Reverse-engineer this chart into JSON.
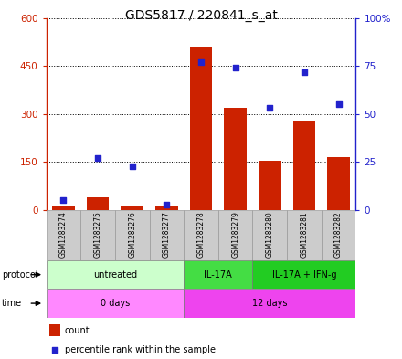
{
  "title": "GDS5817 / 220841_s_at",
  "samples": [
    "GSM1283274",
    "GSM1283275",
    "GSM1283276",
    "GSM1283277",
    "GSM1283278",
    "GSM1283279",
    "GSM1283280",
    "GSM1283281",
    "GSM1283282"
  ],
  "counts": [
    10,
    40,
    15,
    10,
    510,
    320,
    155,
    280,
    165
  ],
  "percentiles": [
    5,
    27,
    23,
    3,
    77,
    74,
    53,
    72,
    55
  ],
  "ylim_left": [
    0,
    600
  ],
  "ylim_right": [
    0,
    100
  ],
  "yticks_left": [
    0,
    150,
    300,
    450,
    600
  ],
  "yticks_right": [
    0,
    25,
    50,
    75,
    100
  ],
  "ytick_labels_left": [
    "0",
    "150",
    "300",
    "450",
    "600"
  ],
  "ytick_labels_right": [
    "0",
    "25",
    "50",
    "75",
    "100%"
  ],
  "bar_color": "#cc2200",
  "dot_color": "#2222cc",
  "protocol_groups": [
    {
      "label": "untreated",
      "start": 0,
      "end": 4,
      "color": "#ccffcc"
    },
    {
      "label": "IL-17A",
      "start": 4,
      "end": 6,
      "color": "#44dd44"
    },
    {
      "label": "IL-17A + IFN-g",
      "start": 6,
      "end": 9,
      "color": "#22cc22"
    }
  ],
  "time_groups": [
    {
      "label": "0 days",
      "start": 0,
      "end": 4,
      "color": "#ff88ff"
    },
    {
      "label": "12 days",
      "start": 4,
      "end": 9,
      "color": "#ee44ee"
    }
  ],
  "legend_count_color": "#cc2200",
  "legend_dot_color": "#2222cc",
  "left_axis_color": "#cc2200",
  "right_axis_color": "#2222cc",
  "sample_box_color": "#cccccc",
  "sample_box_edgecolor": "#999999"
}
